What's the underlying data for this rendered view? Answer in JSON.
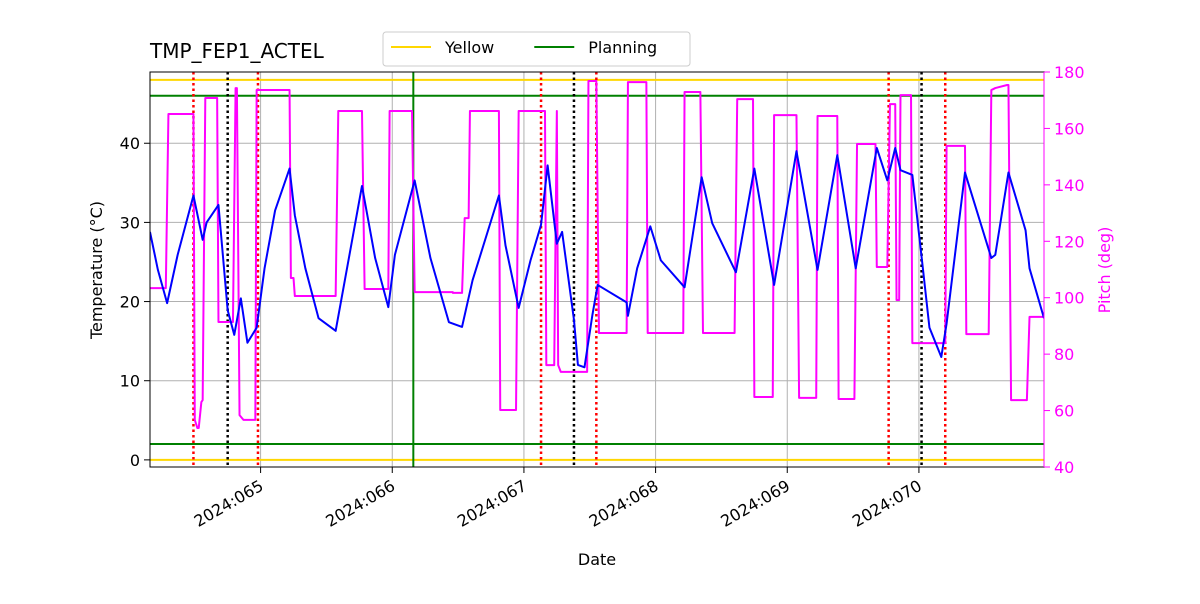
{
  "chart_data": {
    "type": "line",
    "title": "TMP_FEP1_ACTEL",
    "xlabel": "Date",
    "ylabel": "Temperature (°C)",
    "y2label": "Pitch (deg)",
    "xlim": [
      64.16,
      70.95
    ],
    "xticks": [
      {
        "value": 65,
        "label": "2024:065"
      },
      {
        "value": 66,
        "label": "2024:066"
      },
      {
        "value": 67,
        "label": "2024:067"
      },
      {
        "value": 68,
        "label": "2024:068"
      },
      {
        "value": 69,
        "label": "2024:069"
      },
      {
        "value": 70,
        "label": "2024:070"
      }
    ],
    "ylim": [
      -0.9,
      49
    ],
    "yticks": [
      0,
      10,
      20,
      30,
      40
    ],
    "y2lim": [
      40,
      180
    ],
    "y2ticks": [
      40,
      60,
      80,
      100,
      120,
      140,
      160,
      180
    ],
    "y2color": "#ff00ff",
    "grid": true,
    "legend": "top",
    "series": [
      {
        "color": "#0000ff",
        "x": [
          64.16,
          64.22,
          64.29,
          64.37,
          64.49,
          64.56,
          64.59,
          64.68,
          64.75,
          64.8,
          64.85,
          64.9,
          64.97,
          65.03,
          65.11,
          65.22,
          65.26,
          65.34,
          65.44,
          65.57,
          65.64,
          65.77,
          65.87,
          65.97,
          66.02,
          66.17,
          66.29,
          66.43,
          66.53,
          66.61,
          66.81,
          66.86,
          66.96,
          67.05,
          67.13,
          67.18,
          67.25,
          67.29,
          67.38,
          67.41,
          67.46,
          67.52,
          67.56,
          67.78,
          67.79,
          67.86,
          67.96,
          68.04,
          68.22,
          68.35,
          68.43,
          68.61,
          68.75,
          68.9,
          69.07,
          69.23,
          69.38,
          69.52,
          69.68,
          69.76,
          69.82,
          69.86,
          69.95,
          70.03,
          70.08,
          70.17,
          70.21,
          70.35,
          70.55,
          70.58,
          70.68,
          70.81,
          70.84,
          70.95
        ],
        "values": [
          28.8,
          24.0,
          19.8,
          25.9,
          33.4,
          27.8,
          30.0,
          32.2,
          18.9,
          15.8,
          20.4,
          14.8,
          16.7,
          24.2,
          31.5,
          36.8,
          30.9,
          24.2,
          17.9,
          16.3,
          22.7,
          34.6,
          25.5,
          19.3,
          25.9,
          35.3,
          25.5,
          17.4,
          16.8,
          22.7,
          33.4,
          27.1,
          19.2,
          25.2,
          29.7,
          37.2,
          27.3,
          28.8,
          17.7,
          12.0,
          11.7,
          18.3,
          22.1,
          19.9,
          18.2,
          24.2,
          29.5,
          25.2,
          21.8,
          35.7,
          29.9,
          23.7,
          36.8,
          22.1,
          39.0,
          24.0,
          38.5,
          24.2,
          39.4,
          35.3,
          39.4,
          36.6,
          36.0,
          24.2,
          16.7,
          13.0,
          17.2,
          36.3,
          25.5,
          25.9,
          36.3,
          29.0,
          24.2,
          17.9
        ]
      },
      {
        "color": "#ff00ff",
        "axis": "y2",
        "x": [
          64.16,
          64.28,
          64.3,
          64.49,
          64.5,
          64.52,
          64.53,
          64.55,
          64.56,
          64.58,
          64.67,
          64.68,
          64.79,
          64.81,
          64.82,
          64.84,
          64.87,
          64.96,
          64.97,
          65.22,
          65.23,
          65.25,
          65.26,
          65.57,
          65.59,
          65.77,
          65.79,
          65.97,
          65.98,
          66.15,
          66.17,
          66.46,
          66.46,
          66.53,
          66.55,
          66.58,
          66.59,
          66.81,
          66.82,
          66.94,
          66.96,
          67.16,
          67.17,
          67.23,
          67.25,
          67.26,
          67.28,
          67.48,
          67.49,
          67.55,
          67.57,
          67.78,
          67.79,
          67.93,
          67.94,
          68.21,
          68.22,
          68.34,
          68.36,
          68.6,
          68.62,
          68.74,
          68.75,
          68.89,
          68.9,
          69.07,
          69.09,
          69.22,
          69.23,
          69.38,
          69.39,
          69.51,
          69.53,
          69.67,
          69.68,
          69.76,
          69.78,
          69.82,
          69.83,
          69.85,
          69.86,
          69.94,
          69.95,
          70.2,
          70.21,
          70.35,
          70.36,
          70.53,
          70.55,
          70.58,
          70.67,
          70.68,
          70.7,
          70.82,
          70.84,
          70.95
        ],
        "values": [
          103.4,
          103.4,
          165.1,
          165.1,
          56.7,
          53.8,
          53.8,
          63.0,
          63.7,
          170.8,
          170.8,
          91.4,
          91.4,
          174.3,
          174.3,
          58.4,
          56.7,
          56.7,
          173.6,
          173.6,
          107.0,
          107.0,
          100.6,
          100.6,
          166.2,
          166.2,
          103.1,
          103.1,
          166.2,
          166.2,
          102.0,
          102.0,
          101.7,
          101.7,
          128.2,
          128.2,
          166.2,
          166.2,
          60.2,
          60.2,
          166.2,
          166.2,
          76.1,
          76.1,
          166.2,
          76.1,
          73.7,
          73.7,
          176.8,
          176.8,
          87.5,
          87.5,
          176.4,
          176.4,
          87.5,
          87.5,
          172.9,
          172.9,
          87.5,
          87.5,
          170.4,
          170.4,
          64.8,
          64.8,
          164.7,
          164.7,
          64.5,
          64.5,
          164.4,
          164.4,
          64.1,
          64.1,
          154.5,
          154.5,
          110.9,
          110.9,
          168.6,
          168.6,
          99.2,
          99.2,
          171.8,
          171.8,
          83.9,
          83.9,
          153.8,
          153.8,
          87.1,
          87.1,
          173.6,
          174.3,
          175.4,
          175.4,
          63.7,
          63.7,
          93.2,
          93.2
        ]
      }
    ],
    "limits": [
      {
        "name": "Yellow",
        "color": "#ffd700",
        "values": [
          48,
          0
        ]
      },
      {
        "name": "Planning",
        "color": "#008000",
        "values": [
          46,
          2
        ]
      }
    ],
    "vlines": [
      {
        "color": "#ff0000",
        "style": "dotted",
        "x": [
          64.49,
          64.98,
          67.13,
          67.55,
          69.77,
          70.2
        ]
      },
      {
        "color": "#000000",
        "style": "dotted",
        "x": [
          64.75,
          67.38,
          70.02
        ]
      },
      {
        "color": "#008000",
        "style": "solid",
        "x": [
          66.16
        ]
      }
    ]
  }
}
